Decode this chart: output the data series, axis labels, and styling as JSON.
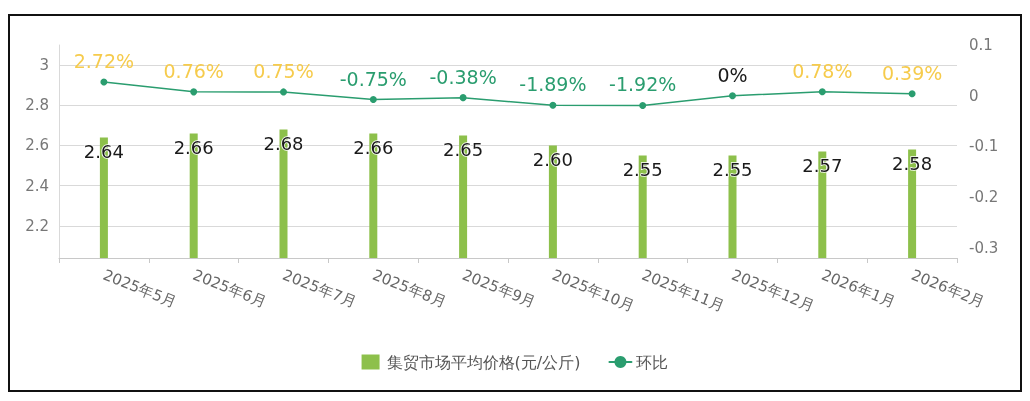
{
  "chart_data": {
    "type": "bar",
    "categories": [
      "2025年5月",
      "2025年6月",
      "2025年7月",
      "2025年8月",
      "2025年9月",
      "2025年10月",
      "2025年11月",
      "2025年12月",
      "2026年1月",
      "2026年2月"
    ],
    "ylim": [
      2.04,
      3.1
    ],
    "yticks": [
      2.2,
      2.4,
      2.6,
      2.8,
      3
    ],
    "y2lim": [
      -0.32,
      0.1
    ],
    "y2ticks": [
      -0.3,
      -0.2,
      -0.1,
      0,
      0.1
    ],
    "grid": "y",
    "legend": "bottom",
    "marker": "circle",
    "line_style": "solid",
    "series": [
      {
        "name": "集贸市场平均价格(元/公斤)",
        "color": "#8dc04b",
        "values": [
          2.64,
          2.66,
          2.68,
          2.66,
          2.65,
          2.6,
          2.55,
          2.55,
          2.57,
          2.58
        ],
        "value_labels": [
          "2.64",
          "2.66",
          "2.68",
          "2.66",
          "2.65",
          "2.60",
          "2.55",
          "2.55",
          "2.57",
          "2.58"
        ]
      },
      {
        "name": "环比",
        "type": "line",
        "axis": "y2",
        "color": "#2a9d6f",
        "values": [
          0.0272,
          0.0076,
          0.0075,
          -0.0075,
          -0.0038,
          -0.0189,
          -0.0192,
          0,
          0.0078,
          0.0039
        ],
        "value_labels": [
          "2.72%",
          "0.76%",
          "0.75%",
          "-0.75%",
          "-0.38%",
          "-1.89%",
          "-1.92%",
          "0%",
          "0.78%",
          "0.39%"
        ]
      }
    ]
  }
}
